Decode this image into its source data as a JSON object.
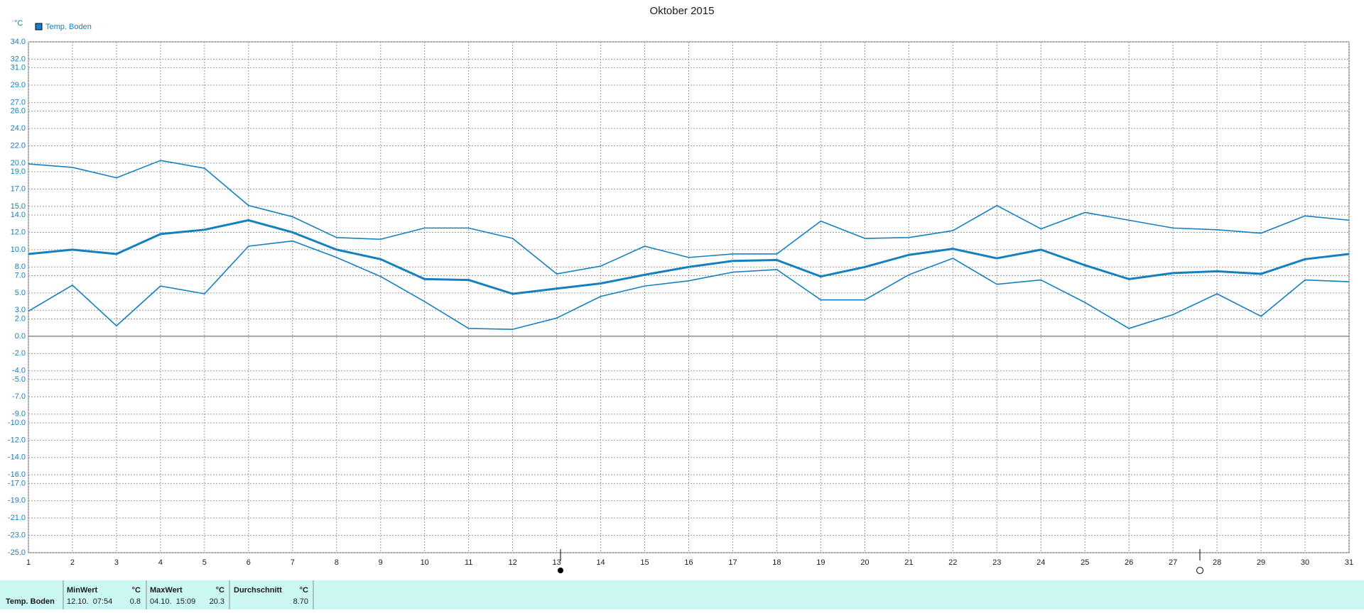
{
  "chart_data": {
    "type": "line",
    "title": "Oktober 2015",
    "y_unit": "°C",
    "x": [
      1,
      2,
      3,
      4,
      5,
      6,
      7,
      8,
      9,
      10,
      11,
      12,
      13,
      14,
      15,
      16,
      17,
      18,
      19,
      20,
      21,
      22,
      23,
      24,
      25,
      26,
      27,
      28,
      29,
      30,
      31
    ],
    "xlim": [
      1,
      31
    ],
    "ylim": [
      -25,
      34
    ],
    "yticks": [
      {
        "value": 34,
        "label": "34.0"
      },
      {
        "value": 32,
        "label": "32.0"
      },
      {
        "value": 31,
        "label": "31.0"
      },
      {
        "value": 29,
        "label": "29.0"
      },
      {
        "value": 27,
        "label": "27.0"
      },
      {
        "value": 26,
        "label": "26.0"
      },
      {
        "value": 24,
        "label": "24.0"
      },
      {
        "value": 22,
        "label": "22.0"
      },
      {
        "value": 20,
        "label": "20.0"
      },
      {
        "value": 19,
        "label": "19.0"
      },
      {
        "value": 17,
        "label": "17.0"
      },
      {
        "value": 15,
        "label": "15.0"
      },
      {
        "value": 14,
        "label": "14.0"
      },
      {
        "value": 12,
        "label": "12.0"
      },
      {
        "value": 10,
        "label": "10.0"
      },
      {
        "value": 8,
        "label": "8.0"
      },
      {
        "value": 7,
        "label": "7.0"
      },
      {
        "value": 5,
        "label": "5.0"
      },
      {
        "value": 3,
        "label": "3.0"
      },
      {
        "value": 2,
        "label": "2.0"
      },
      {
        "value": 0,
        "label": "0.0"
      },
      {
        "value": -2,
        "label": "-2.0"
      },
      {
        "value": -4,
        "label": "-4.0"
      },
      {
        "value": -5,
        "label": "-5.0"
      },
      {
        "value": -7,
        "label": "-7.0"
      },
      {
        "value": -9,
        "label": "-9.0"
      },
      {
        "value": -10,
        "label": "-10.0"
      },
      {
        "value": -12,
        "label": "-12.0"
      },
      {
        "value": -14,
        "label": "-14.0"
      },
      {
        "value": -16,
        "label": "-16.0"
      },
      {
        "value": -17,
        "label": "-17.0"
      },
      {
        "value": -19,
        "label": "-19.0"
      },
      {
        "value": -21,
        "label": "-21.0"
      },
      {
        "value": -23,
        "label": "-23.0"
      },
      {
        "value": -25,
        "label": "-25.0"
      }
    ],
    "grid": true,
    "series": [
      {
        "name": "Temp. Boden",
        "color": "#1480c0",
        "values": [
          9.5,
          10.0,
          9.5,
          11.8,
          12.3,
          13.4,
          12.0,
          10.0,
          8.9,
          6.6,
          6.5,
          4.9,
          5.5,
          6.1,
          7.1,
          8.0,
          8.7,
          8.8,
          6.9,
          8.0,
          9.4,
          10.1,
          9.0,
          10.0,
          8.2,
          6.6,
          7.3,
          7.5,
          7.2,
          8.9,
          9.5
        ],
        "min": [
          2.9,
          5.9,
          1.2,
          5.8,
          4.9,
          10.4,
          11.0,
          9.1,
          6.9,
          4.0,
          0.9,
          0.8,
          2.1,
          4.6,
          5.8,
          6.4,
          7.4,
          7.7,
          4.2,
          4.2,
          7.1,
          9.0,
          6.0,
          6.5,
          3.9,
          0.9,
          2.5,
          4.9,
          2.3,
          6.5,
          6.3
        ],
        "max": [
          19.9,
          19.5,
          18.3,
          20.3,
          19.4,
          15.1,
          13.8,
          11.4,
          11.2,
          12.5,
          12.5,
          11.3,
          7.2,
          8.1,
          10.4,
          9.1,
          9.5,
          9.5,
          13.3,
          11.3,
          11.4,
          12.2,
          15.1,
          12.4,
          14.3,
          13.4,
          12.5,
          12.3,
          11.9,
          13.9,
          13.4
        ]
      }
    ]
  },
  "table": {
    "header": [
      "MinWert",
      "°C",
      "MaxWert",
      "°C",
      "Durchschnitt",
      "°C"
    ],
    "row": {
      "label": "Temp. Boden",
      "cells": [
        "12.10.  07:54",
        "0.8",
        "04.10.  15:09",
        "20.3",
        "8.70"
      ]
    }
  }
}
